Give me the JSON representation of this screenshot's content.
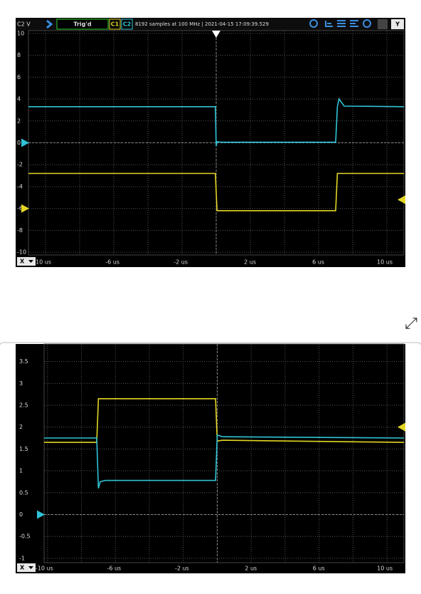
{
  "chart_data": [
    {
      "type": "line",
      "y_label": "C2 V",
      "status": "Trig'd",
      "info": "8192 samples at 100 MHz | 2021-04-15 17:09:39.529",
      "y_button": "Y",
      "x_button": "X",
      "xlim": [
        -11,
        11
      ],
      "ylim": [
        -10.25,
        10.25
      ],
      "xticks": [
        {
          "value": -10,
          "label": "-10 us"
        },
        {
          "value": -6,
          "label": "-6 us"
        },
        {
          "value": -2,
          "label": "-2 us"
        },
        {
          "value": 2,
          "label": "2 us"
        },
        {
          "value": 6,
          "label": "6 us"
        },
        {
          "value": 10,
          "label": "10 us"
        }
      ],
      "yticks": [
        10,
        8,
        6,
        4,
        2,
        0,
        -2,
        -4,
        -6,
        -8,
        -10
      ],
      "grid": true,
      "series": [
        {
          "name": "C1",
          "color": "#e3d623",
          "offset": -6,
          "x": [
            -11,
            -0.05,
            0.05,
            7.0,
            7.1,
            11
          ],
          "values": [
            -2.8,
            -2.8,
            -6.2,
            -6.2,
            -2.8,
            -2.8
          ]
        },
        {
          "name": "C2",
          "color": "#2fc3d6",
          "offset": 0,
          "x": [
            -11,
            -0.05,
            0.0,
            0.05,
            0.3,
            7.0,
            7.1,
            7.2,
            7.5,
            11
          ],
          "values": [
            3.3,
            3.3,
            -0.3,
            0.1,
            0.05,
            0.05,
            3.3,
            4.0,
            3.35,
            3.3
          ]
        }
      ],
      "trigger_level": -5.2
    },
    {
      "type": "line",
      "x_button": "X",
      "xlim": [
        -10.2,
        11
      ],
      "ylim": [
        -1.1,
        3.9
      ],
      "xticks": [
        {
          "value": -10,
          "label": "-10 us"
        },
        {
          "value": -6,
          "label": "-6 us"
        },
        {
          "value": -2,
          "label": "-2 us"
        },
        {
          "value": 2,
          "label": "2 us"
        },
        {
          "value": 6,
          "label": "6 us"
        },
        {
          "value": 10,
          "label": "10 us"
        }
      ],
      "yticks": [
        3.5,
        3,
        2.5,
        2,
        1.5,
        1,
        0.5,
        0,
        -0.5,
        -1
      ],
      "grid": true,
      "series": [
        {
          "color": "#e3d623",
          "x": [
            -10.2,
            -7.1,
            -7.0,
            -0.1,
            0.0,
            0.3,
            11
          ],
          "values": [
            1.65,
            1.65,
            2.65,
            2.65,
            1.68,
            1.7,
            1.65
          ]
        },
        {
          "color": "#2fc3d6",
          "offset": 0,
          "x": [
            -10.2,
            -7.1,
            -7.0,
            -6.9,
            -6.6,
            -0.1,
            0.0,
            0.3,
            11
          ],
          "values": [
            1.75,
            1.75,
            0.6,
            0.75,
            0.78,
            0.78,
            1.82,
            1.78,
            1.75
          ]
        }
      ],
      "trigger_level": 2.0
    }
  ]
}
